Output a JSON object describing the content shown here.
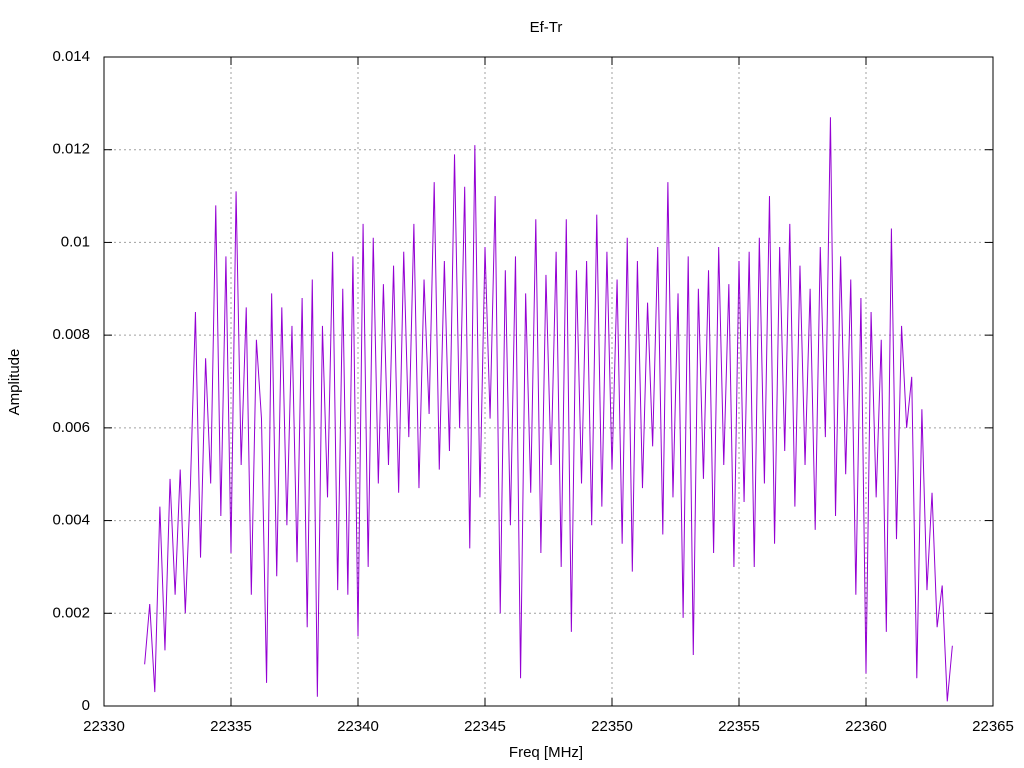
{
  "chart_data": {
    "type": "line",
    "title": "Ef-Tr",
    "xlabel": "Freq [MHz]",
    "ylabel": "Amplitude",
    "xlim": [
      22330,
      22365
    ],
    "xticks": [
      22330,
      22335,
      22340,
      22345,
      22350,
      22355,
      22360,
      22365
    ],
    "ylim": [
      0,
      0.014
    ],
    "yticks": [
      0,
      0.002,
      0.004,
      0.006,
      0.008,
      0.01,
      0.012,
      0.014
    ],
    "grid": true,
    "x": [
      22331.6,
      22331.8,
      22332.0,
      22332.2,
      22332.4,
      22332.6,
      22332.8,
      22333.0,
      22333.2,
      22333.4,
      22333.6,
      22333.8,
      22334.0,
      22334.2,
      22334.4,
      22334.6,
      22334.8,
      22335.0,
      22335.2,
      22335.4,
      22335.6,
      22335.8,
      22336.0,
      22336.2,
      22336.4,
      22336.6,
      22336.8,
      22337.0,
      22337.2,
      22337.4,
      22337.6,
      22337.8,
      22338.0,
      22338.2,
      22338.4,
      22338.6,
      22338.8,
      22339.0,
      22339.2,
      22339.4,
      22339.6,
      22339.8,
      22340.0,
      22340.2,
      22340.4,
      22340.6,
      22340.8,
      22341.0,
      22341.2,
      22341.4,
      22341.6,
      22341.8,
      22342.0,
      22342.2,
      22342.4,
      22342.6,
      22342.8,
      22343.0,
      22343.2,
      22343.4,
      22343.6,
      22343.8,
      22344.0,
      22344.2,
      22344.4,
      22344.6,
      22344.8,
      22345.0,
      22345.2,
      22345.4,
      22345.6,
      22345.8,
      22346.0,
      22346.2,
      22346.4,
      22346.6,
      22346.8,
      22347.0,
      22347.2,
      22347.4,
      22347.6,
      22347.8,
      22348.0,
      22348.2,
      22348.4,
      22348.6,
      22348.8,
      22349.0,
      22349.2,
      22349.4,
      22349.6,
      22349.8,
      22350.0,
      22350.2,
      22350.4,
      22350.6,
      22350.8,
      22351.0,
      22351.2,
      22351.4,
      22351.6,
      22351.8,
      22352.0,
      22352.2,
      22352.4,
      22352.6,
      22352.8,
      22353.0,
      22353.2,
      22353.4,
      22353.6,
      22353.8,
      22354.0,
      22354.2,
      22354.4,
      22354.6,
      22354.8,
      22355.0,
      22355.2,
      22355.4,
      22355.6,
      22355.8,
      22356.0,
      22356.2,
      22356.4,
      22356.6,
      22356.8,
      22357.0,
      22357.2,
      22357.4,
      22357.6,
      22357.8,
      22358.0,
      22358.2,
      22358.4,
      22358.6,
      22358.8,
      22359.0,
      22359.2,
      22359.4,
      22359.6,
      22359.8,
      22360.0,
      22360.2,
      22360.4,
      22360.6,
      22360.8,
      22361.0,
      22361.2,
      22361.4,
      22361.6,
      22361.8,
      22362.0,
      22362.2,
      22362.4,
      22362.6,
      22362.8,
      22363.0,
      22363.2,
      22363.4
    ],
    "series": [
      {
        "color": "#9400d3",
        "values": [
          0.0009,
          0.0022,
          0.0003,
          0.0043,
          0.0012,
          0.0049,
          0.0024,
          0.0051,
          0.002,
          0.0047,
          0.0085,
          0.0032,
          0.0075,
          0.0048,
          0.0108,
          0.0041,
          0.0097,
          0.0033,
          0.0111,
          0.0052,
          0.0086,
          0.0024,
          0.0079,
          0.0062,
          0.0005,
          0.0089,
          0.0028,
          0.0086,
          0.0039,
          0.0082,
          0.0031,
          0.0088,
          0.0017,
          0.0092,
          0.0002,
          0.0082,
          0.0045,
          0.0098,
          0.0025,
          0.009,
          0.0024,
          0.0097,
          0.0015,
          0.0104,
          0.003,
          0.0101,
          0.0048,
          0.0091,
          0.0052,
          0.0095,
          0.0046,
          0.0098,
          0.0058,
          0.0104,
          0.0047,
          0.0092,
          0.0063,
          0.0113,
          0.0051,
          0.0096,
          0.0055,
          0.0119,
          0.006,
          0.0112,
          0.0034,
          0.0121,
          0.0045,
          0.0099,
          0.0062,
          0.011,
          0.002,
          0.0094,
          0.0039,
          0.0097,
          0.0006,
          0.0089,
          0.0046,
          0.0105,
          0.0033,
          0.0093,
          0.0052,
          0.0098,
          0.003,
          0.0105,
          0.0016,
          0.0094,
          0.0048,
          0.0096,
          0.0039,
          0.0106,
          0.0043,
          0.0098,
          0.0051,
          0.0092,
          0.0035,
          0.0101,
          0.0029,
          0.0096,
          0.0047,
          0.0087,
          0.0056,
          0.0099,
          0.0037,
          0.0113,
          0.0045,
          0.0089,
          0.0019,
          0.0097,
          0.0011,
          0.009,
          0.0049,
          0.0094,
          0.0033,
          0.0099,
          0.0052,
          0.0091,
          0.003,
          0.0096,
          0.0044,
          0.0098,
          0.003,
          0.0101,
          0.0048,
          0.011,
          0.0035,
          0.0099,
          0.0055,
          0.0104,
          0.0043,
          0.0095,
          0.0052,
          0.009,
          0.0038,
          0.0099,
          0.0058,
          0.0127,
          0.0041,
          0.0097,
          0.005,
          0.0092,
          0.0024,
          0.0088,
          0.0007,
          0.0085,
          0.0045,
          0.0079,
          0.0016,
          0.0103,
          0.0036,
          0.0082,
          0.006,
          0.0071,
          0.0006,
          0.0064,
          0.0025,
          0.0046,
          0.0017,
          0.0026,
          0.0001,
          0.0013
        ]
      }
    ]
  }
}
